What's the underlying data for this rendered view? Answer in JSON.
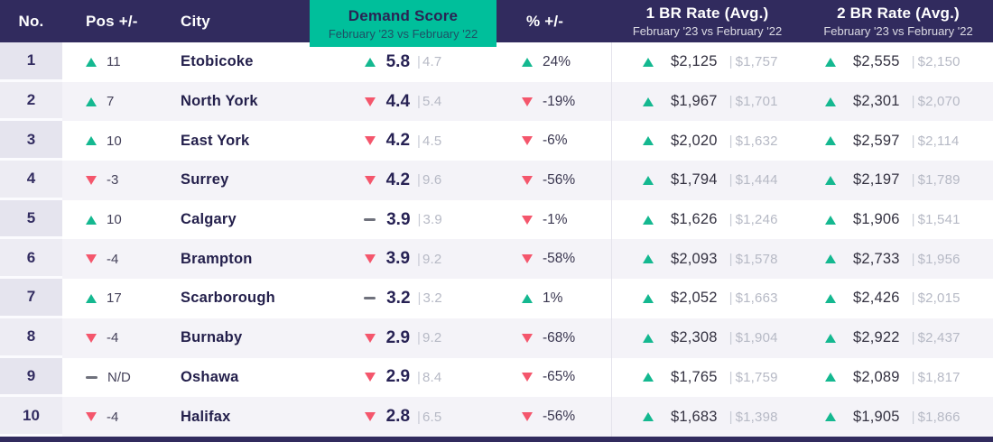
{
  "table": {
    "columns": [
      {
        "label": "No."
      },
      {
        "label": "Pos +/-"
      },
      {
        "label": "City"
      },
      {
        "label": "Demand Score",
        "sublabel": "February '23 vs February '22"
      },
      {
        "label": "% +/-"
      },
      {
        "label": "1 BR Rate (Avg.)",
        "sublabel": "February '23 vs February '22"
      },
      {
        "label": "2 BR Rate (Avg.)",
        "sublabel": "February '23 vs February '22"
      }
    ],
    "rows": [
      {
        "no": "1",
        "pos": {
          "dir": "up",
          "value": "11"
        },
        "city": "Etobicoke",
        "score": {
          "dir": "up",
          "value": "5.8",
          "prev": "4.7"
        },
        "pct": {
          "dir": "up",
          "value": "24%"
        },
        "br1": {
          "dir": "up",
          "value": "$2,125",
          "prev": "$1,757"
        },
        "br2": {
          "dir": "up",
          "value": "$2,555",
          "prev": "$2,150"
        }
      },
      {
        "no": "2",
        "pos": {
          "dir": "up",
          "value": "7"
        },
        "city": "North York",
        "score": {
          "dir": "down",
          "value": "4.4",
          "prev": "5.4"
        },
        "pct": {
          "dir": "down",
          "value": "-19%"
        },
        "br1": {
          "dir": "up",
          "value": "$1,967",
          "prev": "$1,701"
        },
        "br2": {
          "dir": "up",
          "value": "$2,301",
          "prev": "$2,070"
        }
      },
      {
        "no": "3",
        "pos": {
          "dir": "up",
          "value": "10"
        },
        "city": "East York",
        "score": {
          "dir": "down",
          "value": "4.2",
          "prev": "4.5"
        },
        "pct": {
          "dir": "down",
          "value": "-6%"
        },
        "br1": {
          "dir": "up",
          "value": "$2,020",
          "prev": "$1,632"
        },
        "br2": {
          "dir": "up",
          "value": "$2,597",
          "prev": "$2,114"
        }
      },
      {
        "no": "4",
        "pos": {
          "dir": "down",
          "value": "-3"
        },
        "city": "Surrey",
        "score": {
          "dir": "down",
          "value": "4.2",
          "prev": "9.6"
        },
        "pct": {
          "dir": "down",
          "value": "-56%"
        },
        "br1": {
          "dir": "up",
          "value": "$1,794",
          "prev": "$1,444"
        },
        "br2": {
          "dir": "up",
          "value": "$2,197",
          "prev": "$1,789"
        }
      },
      {
        "no": "5",
        "pos": {
          "dir": "up",
          "value": "10"
        },
        "city": "Calgary",
        "score": {
          "dir": "flat",
          "value": "3.9",
          "prev": "3.9"
        },
        "pct": {
          "dir": "down",
          "value": "-1%"
        },
        "br1": {
          "dir": "up",
          "value": "$1,626",
          "prev": "$1,246"
        },
        "br2": {
          "dir": "up",
          "value": "$1,906",
          "prev": "$1,541"
        }
      },
      {
        "no": "6",
        "pos": {
          "dir": "down",
          "value": "-4"
        },
        "city": "Brampton",
        "score": {
          "dir": "down",
          "value": "3.9",
          "prev": "9.2"
        },
        "pct": {
          "dir": "down",
          "value": "-58%"
        },
        "br1": {
          "dir": "up",
          "value": "$2,093",
          "prev": "$1,578"
        },
        "br2": {
          "dir": "up",
          "value": "$2,733",
          "prev": "$1,956"
        }
      },
      {
        "no": "7",
        "pos": {
          "dir": "up",
          "value": "17"
        },
        "city": "Scarborough",
        "score": {
          "dir": "flat",
          "value": "3.2",
          "prev": "3.2"
        },
        "pct": {
          "dir": "up",
          "value": "1%"
        },
        "br1": {
          "dir": "up",
          "value": "$2,052",
          "prev": "$1,663"
        },
        "br2": {
          "dir": "up",
          "value": "$2,426",
          "prev": "$2,015"
        }
      },
      {
        "no": "8",
        "pos": {
          "dir": "down",
          "value": "-4"
        },
        "city": "Burnaby",
        "score": {
          "dir": "down",
          "value": "2.9",
          "prev": "9.2"
        },
        "pct": {
          "dir": "down",
          "value": "-68%"
        },
        "br1": {
          "dir": "up",
          "value": "$2,308",
          "prev": "$1,904"
        },
        "br2": {
          "dir": "up",
          "value": "$2,922",
          "prev": "$2,437"
        }
      },
      {
        "no": "9",
        "pos": {
          "dir": "flat",
          "value": "N/D"
        },
        "city": "Oshawa",
        "score": {
          "dir": "down",
          "value": "2.9",
          "prev": "8.4"
        },
        "pct": {
          "dir": "down",
          "value": "-65%"
        },
        "br1": {
          "dir": "up",
          "value": "$1,765",
          "prev": "$1,759"
        },
        "br2": {
          "dir": "up",
          "value": "$2,089",
          "prev": "$1,817"
        }
      },
      {
        "no": "10",
        "pos": {
          "dir": "down",
          "value": "-4"
        },
        "city": "Halifax",
        "score": {
          "dir": "down",
          "value": "2.8",
          "prev": "6.5"
        },
        "pct": {
          "dir": "down",
          "value": "-56%"
        },
        "br1": {
          "dir": "up",
          "value": "$1,683",
          "prev": "$1,398"
        },
        "br2": {
          "dir": "up",
          "value": "$1,905",
          "prev": "$1,866"
        }
      }
    ]
  },
  "colors": {
    "header_navy": "#312b5e",
    "demand_teal": "#00bf9b",
    "up_green": "#14b890",
    "down_red": "#f4566c",
    "prev_gray": "#b6b9c5"
  },
  "chart_data": {
    "type": "table",
    "columns": [
      "No.",
      "Pos +/-",
      "City",
      "Demand Score Feb '23",
      "Demand Score Feb '22",
      "% +/-",
      "1 BR Rate Feb '23",
      "1 BR Rate Feb '22",
      "2 BR Rate Feb '23",
      "2 BR Rate Feb '22"
    ],
    "rows": [
      [
        1,
        11,
        "Etobicoke",
        5.8,
        4.7,
        24,
        2125,
        1757,
        2555,
        2150
      ],
      [
        2,
        7,
        "North York",
        4.4,
        5.4,
        -19,
        1967,
        1701,
        2301,
        2070
      ],
      [
        3,
        10,
        "East York",
        4.2,
        4.5,
        -6,
        2020,
        1632,
        2597,
        2114
      ],
      [
        4,
        -3,
        "Surrey",
        4.2,
        9.6,
        -56,
        1794,
        1444,
        2197,
        1789
      ],
      [
        5,
        10,
        "Calgary",
        3.9,
        3.9,
        -1,
        1626,
        1246,
        1906,
        1541
      ],
      [
        6,
        -4,
        "Brampton",
        3.9,
        9.2,
        -58,
        2093,
        1578,
        2733,
        1956
      ],
      [
        7,
        17,
        "Scarborough",
        3.2,
        3.2,
        1,
        2052,
        1663,
        2426,
        2015
      ],
      [
        8,
        -4,
        "Burnaby",
        2.9,
        9.2,
        -68,
        2308,
        1904,
        2922,
        2437
      ],
      [
        9,
        null,
        "Oshawa",
        2.9,
        8.4,
        -65,
        1765,
        1759,
        2089,
        1817
      ],
      [
        10,
        -4,
        "Halifax",
        2.8,
        6.5,
        -56,
        1683,
        1398,
        1905,
        1866
      ]
    ]
  }
}
